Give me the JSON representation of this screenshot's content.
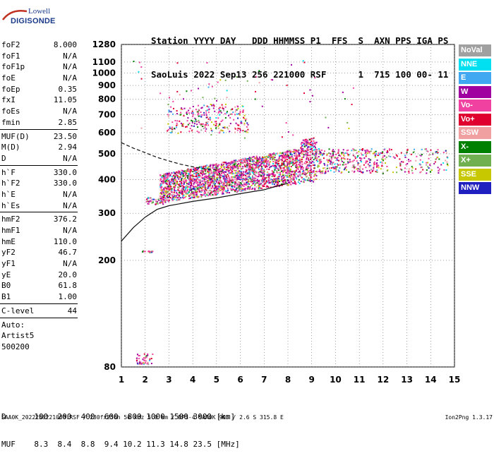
{
  "logo": {
    "line1": "Lowell",
    "line2": "DIGISONDE"
  },
  "header": {
    "line1": "Station YYYY DAY   DDD HHMMSS P1  FFS  S  AXN PPS IGA PS",
    "line2": "SaoLuis 2022 Sep13 256 221000 RSF      1  715 100 00- 11"
  },
  "params": {
    "group1": [
      {
        "name": "foF2",
        "value": "8.000"
      },
      {
        "name": "foF1",
        "value": "N/A"
      },
      {
        "name": "foF1p",
        "value": "N/A"
      },
      {
        "name": "foE",
        "value": "N/A"
      },
      {
        "name": "foEp",
        "value": "0.35"
      },
      {
        "name": "fxI",
        "value": "11.05"
      },
      {
        "name": "foEs",
        "value": "N/A"
      },
      {
        "name": "fmin",
        "value": "2.85"
      }
    ],
    "group2": [
      {
        "name": "MUF(D)",
        "value": "23.50"
      },
      {
        "name": "M(D)",
        "value": "2.94"
      },
      {
        "name": "D",
        "value": "N/A"
      }
    ],
    "group3": [
      {
        "name": "h`F",
        "value": "330.0"
      },
      {
        "name": "h`F2",
        "value": "330.0"
      },
      {
        "name": "h`E",
        "value": "N/A"
      },
      {
        "name": "h`Es",
        "value": "N/A"
      }
    ],
    "group4": [
      {
        "name": "hmF2",
        "value": "376.2"
      },
      {
        "name": "hmF1",
        "value": "N/A"
      },
      {
        "name": "hmE",
        "value": "110.0"
      },
      {
        "name": "yF2",
        "value": "46.7"
      },
      {
        "name": "yF1",
        "value": "N/A"
      },
      {
        "name": "yE",
        "value": "20.0"
      },
      {
        "name": "B0",
        "value": "61.8"
      },
      {
        "name": "B1",
        "value": "1.00"
      }
    ],
    "group5": [
      {
        "name": "C-level",
        "value": "44"
      }
    ],
    "auto": [
      "Auto:",
      "Artist5",
      "500200"
    ]
  },
  "legend": [
    {
      "label": "NoVal",
      "color": "#a0a0a0"
    },
    {
      "label": "NNE",
      "color": "#00e0f0"
    },
    {
      "label": "E",
      "color": "#40a8f0"
    },
    {
      "label": "W",
      "color": "#a000a0"
    },
    {
      "label": "Vo-",
      "color": "#f040a0"
    },
    {
      "label": "Vo+",
      "color": "#e00030"
    },
    {
      "label": "SSW",
      "color": "#f0a0a0"
    },
    {
      "label": "X-",
      "color": "#008000"
    },
    {
      "label": "X+",
      "color": "#70b050"
    },
    {
      "label": "SSE",
      "color": "#c8c800"
    },
    {
      "label": "NNW",
      "color": "#2020c0"
    }
  ],
  "dtable": {
    "line1": "D      100  200  400  600  800 1000 1500 3000 [km]",
    "line2": "MUF    8.3  8.4  8.8  9.4 10.2 11.3 14.8 23.5 [MHz]"
  },
  "footer": {
    "left": "SAA0K_2022256221000.RSF / 280fx256h 50 kHz 5.0 km / DPS-4 SAA0K 903 / 2.6 S 315.8 E",
    "right": "Ion2Png 1.3.17"
  },
  "chart_data": {
    "type": "scatter",
    "title": "",
    "xlabel": "",
    "ylabel": "",
    "xlim": [
      1,
      15
    ],
    "ylim": [
      80,
      1280
    ],
    "y_axis_scale": "log",
    "x_ticks": [
      1,
      2,
      3,
      4,
      5,
      6,
      7,
      8,
      9,
      10,
      11,
      12,
      13,
      14,
      15
    ],
    "y_ticks": [
      80,
      200,
      300,
      400,
      500,
      600,
      700,
      800,
      900,
      1000,
      1100,
      1280
    ],
    "trace_profile": {
      "name": "",
      "x": [
        1.0,
        1.5,
        2.0,
        2.5,
        3.0,
        4.0,
        5.0,
        6.0,
        7.0,
        7.5,
        8.0
      ],
      "y": [
        236,
        265,
        290,
        310,
        320,
        332,
        342,
        355,
        367,
        378,
        388
      ]
    },
    "dashed_profile": {
      "name": "",
      "x": [
        1.0,
        1.5,
        2.0,
        2.5,
        3.0,
        3.5,
        4.0,
        4.5,
        5.0
      ],
      "y": [
        550,
        525,
        505,
        485,
        470,
        457,
        447,
        440,
        435
      ]
    },
    "clusters": [
      {
        "name": "NoVal",
        "x": 1.6,
        "y": 960
      },
      {
        "name": "F-trace main",
        "x": 6.0,
        "y": 410
      },
      {
        "name": "upper W spread",
        "x": 4.0,
        "y": 660
      },
      {
        "name": "high freq extension",
        "x": 12.5,
        "y": 480
      },
      {
        "name": "low E/D echoes",
        "x": 1.9,
        "y": 85
      }
    ]
  }
}
